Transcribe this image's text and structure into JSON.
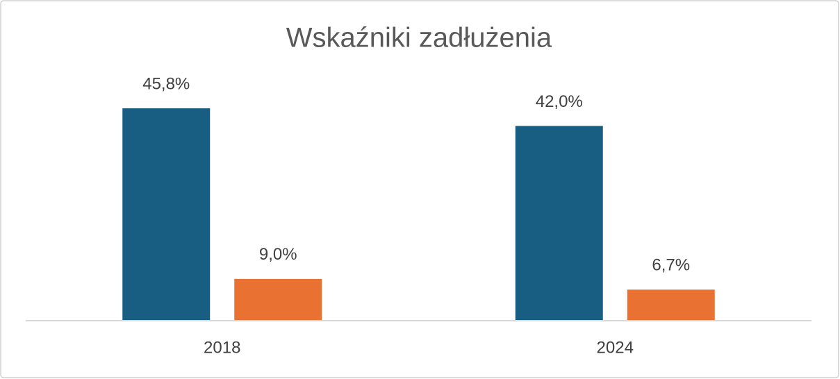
{
  "chart_data": {
    "type": "bar",
    "title": "Wskaźniki zadłużenia",
    "categories": [
      "2018",
      "2024"
    ],
    "series": [
      {
        "color": "#175e82",
        "values": [
          45.8,
          42.0
        ],
        "value_labels": [
          "45,8%",
          "42,0%"
        ]
      },
      {
        "color": "#e97132",
        "values": [
          9.0,
          6.7
        ],
        "value_labels": [
          "9,0%",
          "6,7%"
        ]
      }
    ],
    "ylim": [
      0,
      50
    ]
  }
}
